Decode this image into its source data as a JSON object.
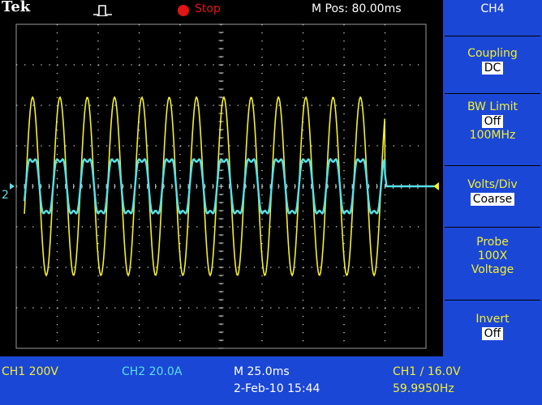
{
  "header": {
    "brand": "Tek",
    "run_state": "Stop",
    "position": "M Pos: 80.00ms"
  },
  "menu": {
    "title": "CH4",
    "items": [
      {
        "label": "Coupling",
        "value": "DC"
      },
      {
        "label": "BW Limit",
        "value": "Off",
        "extra": "100MHz"
      },
      {
        "label": "Volts/Div",
        "value": "Coarse"
      },
      {
        "label": "Probe",
        "lines": [
          "100X",
          "Voltage"
        ]
      },
      {
        "label": "Invert",
        "value": "Off"
      }
    ]
  },
  "readout": {
    "ch1": "CH1  200V",
    "ch2": "CH2  20.0A",
    "timebase": "M 25.0ms",
    "trigger": "CH1 ∕ 16.0V",
    "datetime": "2-Feb-10 15:44",
    "frequency": "59.9950Hz"
  },
  "markers": {
    "ch2_ground": "2"
  },
  "colors": {
    "ch1": "#f3ef2d",
    "ch2": "#56e2ea",
    "menu_bg": "#1b47d6",
    "grid": "#cfcfcf",
    "stop": "#e31414"
  },
  "chart_data": {
    "type": "line",
    "description_units": "divisions",
    "x_divisions": 10,
    "y_divisions": 8,
    "series": [
      {
        "name": "CH1",
        "frequency_hz": 59.995,
        "amplitude_div": 2.2,
        "offset_div": 0,
        "color": "#f3ef2d"
      },
      {
        "name": "CH2",
        "frequency_hz": 59.995,
        "amplitude_div": 0.9,
        "offset_div": 0,
        "color": "#56e2ea"
      }
    ],
    "time_per_div_ms": 25.0,
    "stop_div": 9.0
  }
}
